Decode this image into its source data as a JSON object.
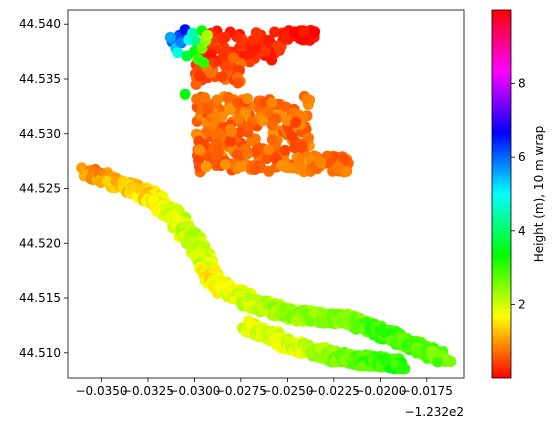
{
  "chart_data": {
    "type": "scatter",
    "title": "",
    "xlabel": "",
    "ylabel": "",
    "x_offset_label": "−1.232e2",
    "xlim": [
      -0.0368,
      -0.0155
    ],
    "ylim": [
      44.5077,
      44.5413
    ],
    "x_ticks": [
      -0.035,
      -0.0325,
      -0.03,
      -0.0275,
      -0.025,
      -0.0225,
      -0.02,
      -0.0175
    ],
    "x_tick_labels": [
      "−0.0350",
      "−0.0325",
      "−0.0300",
      "−0.0275",
      "−0.0250",
      "−0.0225",
      "−0.0200",
      "−0.0175"
    ],
    "y_ticks": [
      44.51,
      44.515,
      44.52,
      44.525,
      44.53,
      44.535,
      44.54
    ],
    "y_tick_labels": [
      "44.510",
      "44.515",
      "44.520",
      "44.525",
      "44.530",
      "44.535",
      "44.540"
    ],
    "colormap": "hsv",
    "colorbar": {
      "label": "Height (m), 10 m wrap",
      "range": [
        0.0,
        10.0
      ],
      "ticks": [
        2,
        4,
        6,
        8
      ],
      "tick_labels": [
        "2",
        "4",
        "6",
        "8"
      ]
    },
    "track_segments": [
      {
        "x0": -0.0358,
        "y0": 44.5265,
        "x1": -0.0325,
        "y1": 44.5245,
        "h0": 0.9,
        "h1": 1.4
      },
      {
        "x0": -0.0325,
        "y0": 44.5245,
        "x1": -0.0308,
        "y1": 44.522,
        "h0": 1.4,
        "h1": 2.0
      },
      {
        "x0": -0.0308,
        "y0": 44.522,
        "x1": -0.0296,
        "y1": 44.519,
        "h0": 2.0,
        "h1": 2.1
      },
      {
        "x0": -0.0296,
        "y0": 44.519,
        "x1": -0.029,
        "y1": 44.5165,
        "h0": 2.1,
        "h1": 1.6
      },
      {
        "x0": -0.029,
        "y0": 44.5165,
        "x1": -0.0268,
        "y1": 44.5145,
        "h0": 1.6,
        "h1": 2.0
      },
      {
        "x0": -0.0268,
        "y0": 44.5145,
        "x1": -0.0248,
        "y1": 44.5135,
        "h0": 2.0,
        "h1": 2.3
      },
      {
        "x0": -0.0248,
        "y0": 44.5135,
        "x1": -0.0218,
        "y1": 44.513,
        "h0": 2.3,
        "h1": 2.5
      },
      {
        "x0": -0.0218,
        "y0": 44.513,
        "x1": -0.0195,
        "y1": 44.5115,
        "h0": 2.5,
        "h1": 3.0
      },
      {
        "x0": -0.0195,
        "y0": 44.5115,
        "x1": -0.0166,
        "y1": 44.5095,
        "h0": 3.0,
        "h1": 2.7
      },
      {
        "x0": -0.0272,
        "y0": 44.5125,
        "x1": -0.0245,
        "y1": 44.5105,
        "h0": 1.8,
        "h1": 1.9
      },
      {
        "x0": -0.0245,
        "y0": 44.5105,
        "x1": -0.022,
        "y1": 44.5095,
        "h0": 1.9,
        "h1": 2.6
      },
      {
        "x0": -0.022,
        "y0": 44.5095,
        "x1": -0.019,
        "y1": 44.509,
        "h0": 2.6,
        "h1": 3.1
      }
    ],
    "patches": [
      {
        "x_range": [
          -0.0299,
          -0.0238
        ],
        "y_range": [
          44.5265,
          44.5335
        ],
        "h_range": [
          0.4,
          1.0
        ]
      },
      {
        "x_range": [
          -0.0238,
          -0.0216
        ],
        "y_range": [
          44.5265,
          44.528
        ],
        "h_range": [
          0.5,
          0.9
        ]
      },
      {
        "x_range": [
          -0.0298,
          -0.0252
        ],
        "y_range": [
          44.5365,
          44.5395
        ],
        "h_range": [
          0.1,
          0.4
        ]
      },
      {
        "x_range": [
          -0.0252,
          -0.0235
        ],
        "y_range": [
          44.5385,
          44.5395
        ],
        "h_range": [
          0.0,
          0.2
        ]
      },
      {
        "x_range": [
          -0.03,
          -0.0275
        ],
        "y_range": [
          44.5345,
          44.537
        ],
        "h_range": [
          0.3,
          0.8
        ]
      }
    ],
    "points": [
      {
        "x": -0.0312,
        "y": 44.5384,
        "h": 6.0
      },
      {
        "x": -0.031,
        "y": 44.5378,
        "h": 5.4
      },
      {
        "x": -0.0308,
        "y": 44.539,
        "h": 6.2
      },
      {
        "x": -0.0305,
        "y": 44.5395,
        "h": 6.6
      },
      {
        "x": -0.0307,
        "y": 44.5383,
        "h": 5.8
      },
      {
        "x": -0.0303,
        "y": 44.5386,
        "h": 5.0
      },
      {
        "x": -0.0301,
        "y": 44.5392,
        "h": 4.5
      },
      {
        "x": -0.0299,
        "y": 44.5384,
        "h": 4.2
      },
      {
        "x": -0.0309,
        "y": 44.5374,
        "h": 4.8
      },
      {
        "x": -0.0304,
        "y": 44.5371,
        "h": 3.6
      },
      {
        "x": -0.03,
        "y": 44.5375,
        "h": 3.4
      },
      {
        "x": -0.0298,
        "y": 44.5368,
        "h": 3.0
      },
      {
        "x": -0.0296,
        "y": 44.5378,
        "h": 2.6
      },
      {
        "x": -0.0294,
        "y": 44.5385,
        "h": 2.4
      },
      {
        "x": -0.0296,
        "y": 44.5394,
        "h": 3.3
      },
      {
        "x": -0.0293,
        "y": 44.539,
        "h": 2.2
      },
      {
        "x": -0.0295,
        "y": 44.5365,
        "h": 3.1
      },
      {
        "x": -0.0313,
        "y": 44.5388,
        "h": 5.6
      },
      {
        "x": -0.0305,
        "y": 44.5336,
        "h": 3.4
      }
    ]
  }
}
